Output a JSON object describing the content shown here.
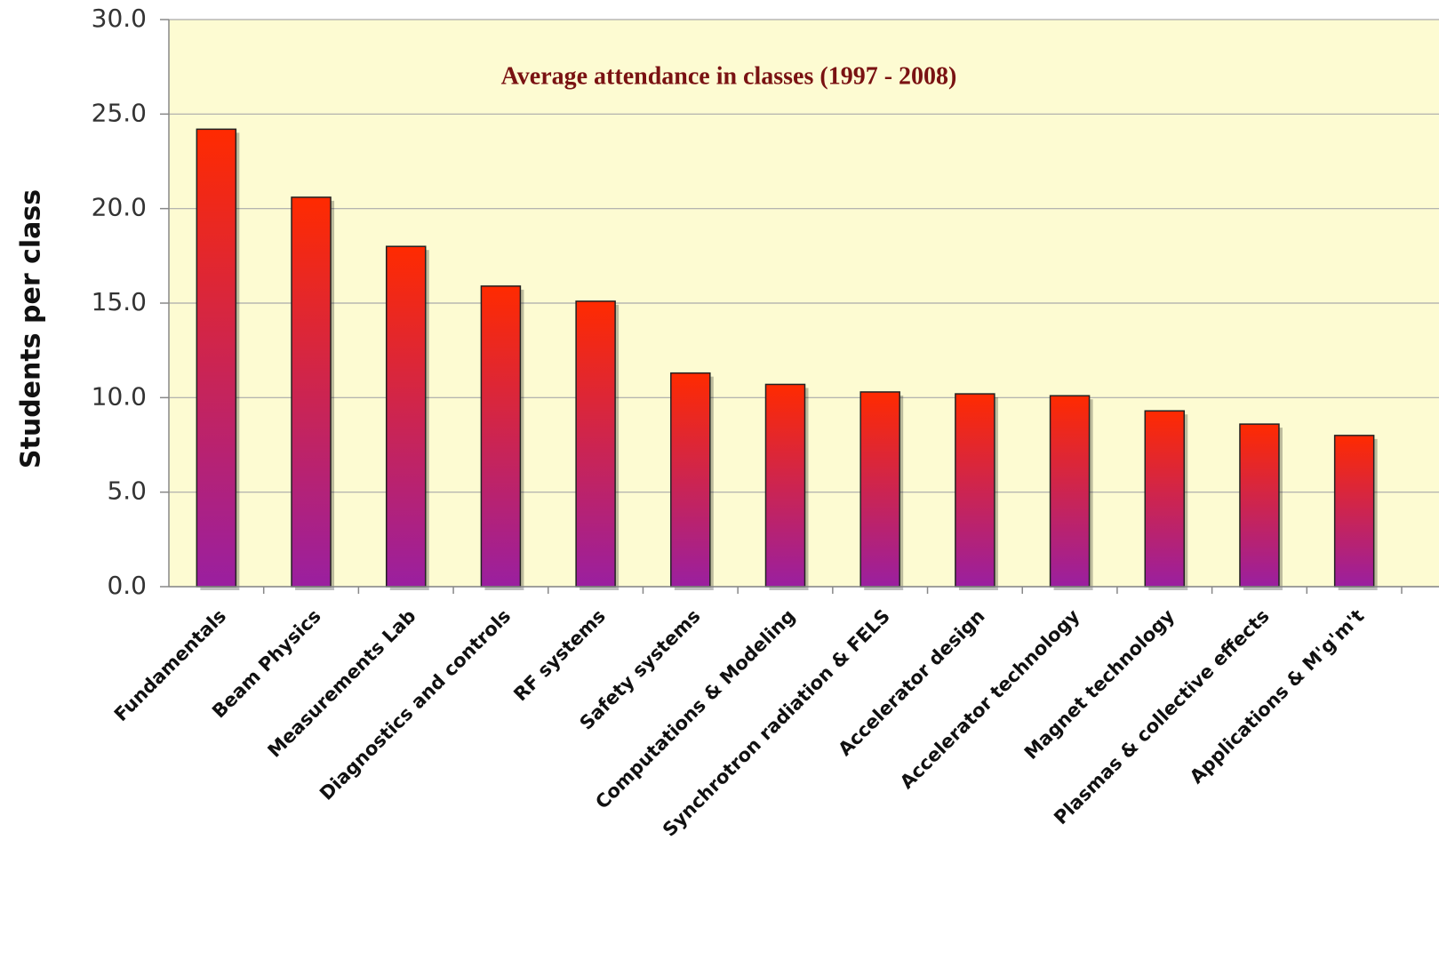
{
  "chart_data": {
    "type": "bar",
    "title": "Average attendance in classes (1997 - 2008)",
    "y_label": "Students per class",
    "categories": [
      "Fundamentals",
      "Beam Physics",
      "Measurements Lab",
      "Diagnostics and controls",
      "RF systems",
      "Safety systems",
      "Computations & Modeling",
      "Synchrotron radiation & FELS",
      "Accelerator design",
      "Accelerator technology",
      "Magnet technology",
      "Plasmas & collective effects",
      "Applications & M'g'm't"
    ],
    "values": [
      24.2,
      20.6,
      18.0,
      15.9,
      15.1,
      11.3,
      10.7,
      10.3,
      10.2,
      10.1,
      9.3,
      8.6,
      8.0
    ],
    "gradient": [
      "#ff2a00",
      "#9a1fa0"
    ],
    "ylim": [
      0,
      30
    ],
    "yticks": [
      {
        "value": 0,
        "label": "0.0"
      },
      {
        "value": 5,
        "label": "5.0"
      },
      {
        "value": 10,
        "label": "10.0"
      },
      {
        "value": 15,
        "label": "15.0"
      },
      {
        "value": 20,
        "label": "20.0"
      },
      {
        "value": 25,
        "label": "25.0"
      },
      {
        "value": 30,
        "label": "30.0"
      }
    ],
    "grid": true
  }
}
